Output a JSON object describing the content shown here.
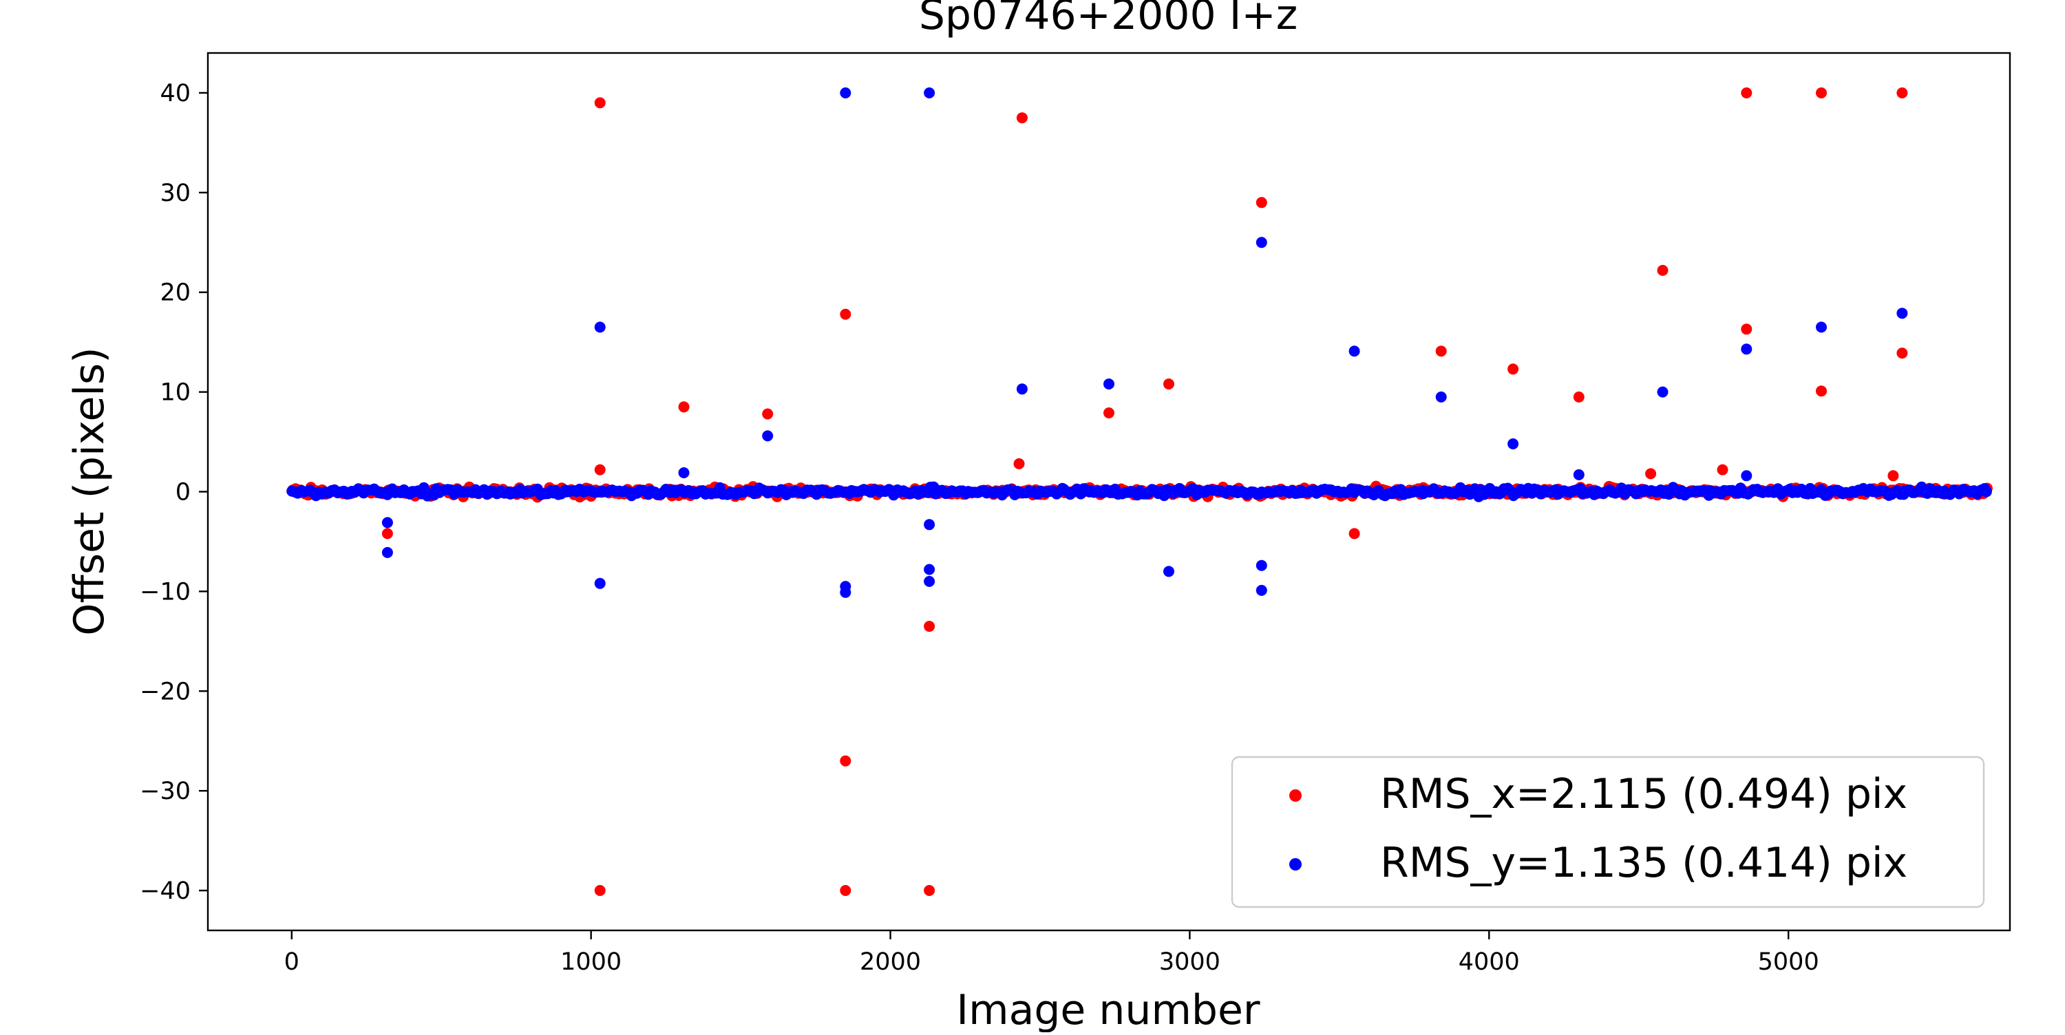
{
  "chart_data": {
    "type": "scatter",
    "title": "Sp0746+2000 I+z",
    "xlabel": "Image number",
    "ylabel": "Offset (pixels)",
    "xlim": [
      -280,
      5740
    ],
    "ylim": [
      -44,
      44
    ],
    "xticks": [
      0,
      1000,
      2000,
      3000,
      4000,
      5000
    ],
    "yticks": [
      -40,
      -30,
      -20,
      -10,
      0,
      10,
      20,
      30,
      40
    ],
    "xtick_labels": [
      "0",
      "1000",
      "2000",
      "3000",
      "4000",
      "5000"
    ],
    "ytick_labels": [
      "−40",
      "−30",
      "−20",
      "−10",
      "0",
      "10",
      "20",
      "30",
      "40"
    ],
    "grid": false,
    "legend_position": "lower-right",
    "dense_band": {
      "x_range": [
        0,
        5660
      ],
      "note_level": "approximately 0 with spread up to about ±1.5 px"
    },
    "series": [
      {
        "name": "RMS_x=2.115 (0.494) pix",
        "color": "#ff0000",
        "outliers": [
          [
            1030,
            39
          ],
          [
            1030,
            2.2
          ],
          [
            1030,
            -40
          ],
          [
            1310,
            8.5
          ],
          [
            1590,
            7.8
          ],
          [
            1850,
            17.8
          ],
          [
            1850,
            -27
          ],
          [
            1850,
            -40
          ],
          [
            2130,
            -13.5
          ],
          [
            2130,
            -40
          ],
          [
            2430,
            2.8
          ],
          [
            2440,
            37.5
          ],
          [
            2730,
            7.9
          ],
          [
            2930,
            10.8
          ],
          [
            3240,
            29
          ],
          [
            3550,
            -4.2
          ],
          [
            3840,
            14.1
          ],
          [
            4080,
            12.3
          ],
          [
            4300,
            9.5
          ],
          [
            4580,
            22.2
          ],
          [
            4860,
            40
          ],
          [
            4860,
            16.3
          ],
          [
            5110,
            40
          ],
          [
            5110,
            10.1
          ],
          [
            5380,
            40
          ],
          [
            5380,
            13.9
          ],
          [
            320,
            -4.2
          ],
          [
            4780,
            2.2
          ],
          [
            4540,
            1.8
          ],
          [
            5350,
            1.6
          ]
        ]
      },
      {
        "name": "RMS_y=1.135 (0.414) pix",
        "color": "#0000ff",
        "outliers": [
          [
            1850,
            40
          ],
          [
            2130,
            40
          ],
          [
            1030,
            16.5
          ],
          [
            1030,
            -9.2
          ],
          [
            1310,
            1.9
          ],
          [
            1590,
            5.6
          ],
          [
            1850,
            -9.5
          ],
          [
            1850,
            -10.1
          ],
          [
            2130,
            -3.3
          ],
          [
            2130,
            -7.8
          ],
          [
            2130,
            -9
          ],
          [
            2440,
            10.3
          ],
          [
            2730,
            10.8
          ],
          [
            2930,
            -8
          ],
          [
            3240,
            25
          ],
          [
            3240,
            -7.4
          ],
          [
            3240,
            -9.9
          ],
          [
            3550,
            14.1
          ],
          [
            3840,
            9.5
          ],
          [
            4080,
            4.8
          ],
          [
            4300,
            1.7
          ],
          [
            4580,
            10
          ],
          [
            4860,
            14.3
          ],
          [
            5110,
            16.5
          ],
          [
            5380,
            17.9
          ],
          [
            320,
            -3.1
          ],
          [
            320,
            -6.1
          ],
          [
            4860,
            1.6
          ]
        ]
      }
    ]
  }
}
